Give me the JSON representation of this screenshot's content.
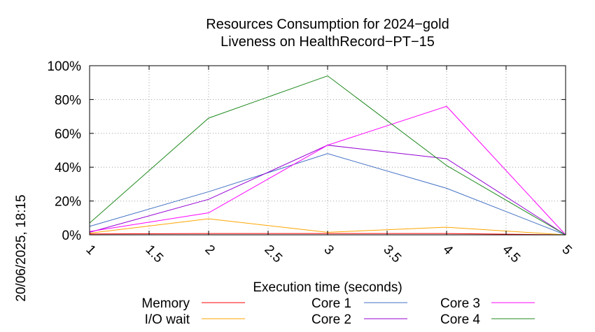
{
  "side_label": "20/06/2025, 18:15",
  "chart_data": {
    "type": "line",
    "title_lines": [
      "Resources Consumption for 2024−gold",
      "Liveness on HealthRecord−PT−15"
    ],
    "xlabel": "Execution time (seconds)",
    "ylabel": "",
    "xlim": [
      1,
      5
    ],
    "ylim": [
      0,
      100
    ],
    "x_ticks": [
      1,
      1.5,
      2,
      2.5,
      3,
      3.5,
      4,
      4.5,
      5
    ],
    "x_tick_labels": [
      "1",
      "1.5",
      "2",
      "2.5",
      "3",
      "3.5",
      "4",
      "4.5",
      "5"
    ],
    "y_ticks": [
      0,
      20,
      40,
      60,
      80,
      100
    ],
    "y_tick_labels": [
      "0%",
      "20%",
      "40%",
      "60%",
      "80%",
      "100%"
    ],
    "grid": true,
    "legend_position": "bottom",
    "x": [
      1,
      2,
      3,
      4,
      5
    ],
    "series": [
      {
        "name": "Memory",
        "color": "#ff0000",
        "values": [
          0.5,
          0.8,
          0.8,
          0.8,
          0
        ]
      },
      {
        "name": "I/O wait",
        "color": "#ffa500",
        "values": [
          1,
          9.5,
          1.5,
          4.5,
          0
        ]
      },
      {
        "name": "Core 1",
        "color": "#4472c4",
        "values": [
          5,
          25.5,
          48,
          27.5,
          0
        ]
      },
      {
        "name": "Core 2",
        "color": "#9400d3",
        "values": [
          1.5,
          21,
          53,
          45,
          0
        ]
      },
      {
        "name": "Core 3",
        "color": "#ff00ff",
        "values": [
          2,
          13,
          53,
          76,
          0
        ]
      },
      {
        "name": "Core 4",
        "color": "#228b22",
        "values": [
          7,
          69,
          94,
          41,
          0
        ]
      }
    ]
  }
}
